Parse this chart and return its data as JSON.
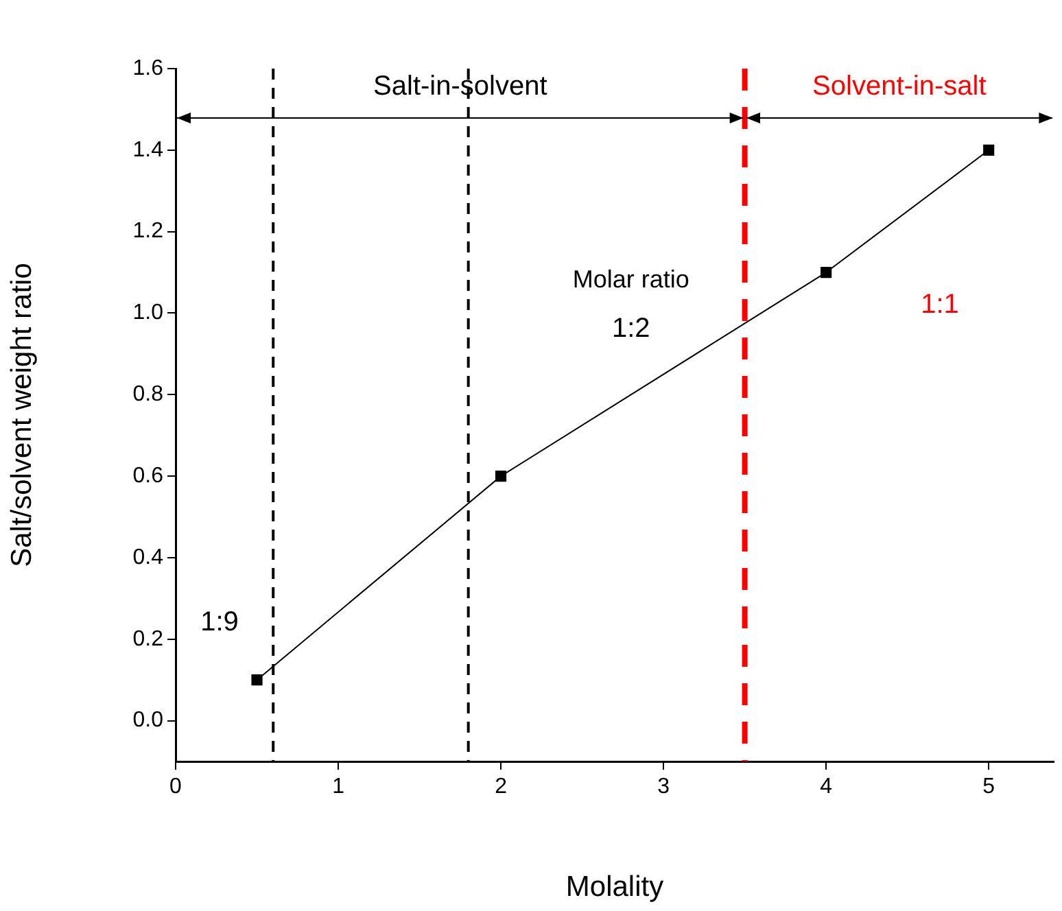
{
  "chart_data": {
    "type": "line",
    "xlabel": "Molality",
    "ylabel": "Salt/solvent weight ratio",
    "x": [
      0.5,
      2,
      4,
      5
    ],
    "series": [
      {
        "color": "#000000",
        "values": [
          0.1,
          0.6,
          1.1,
          1.4
        ]
      }
    ],
    "xlim": [
      0,
      5.4
    ],
    "ylim": [
      -0.1,
      1.6
    ],
    "xticks": [
      0,
      1,
      2,
      3,
      4,
      5
    ],
    "yticks": [
      {
        "value": 0,
        "label": "0.0"
      },
      0.2,
      0.4,
      0.6,
      0.8,
      {
        "value": 1,
        "label": "1.0"
      },
      1.2,
      1.4,
      1.6
    ],
    "ref_lines": [
      {
        "axis": "x",
        "value": 0.6,
        "color": "#000000",
        "line_style": "dashed"
      },
      {
        "axis": "x",
        "value": 1.8,
        "color": "#000000",
        "line_style": "dashed"
      },
      {
        "axis": "x",
        "value": 3.5,
        "color": "#ff0000",
        "line_style": "dashed"
      }
    ],
    "annotations": [
      "1:9",
      "Molar ratio",
      "1:2",
      "1:1",
      "Salt-in-solvent",
      "Solvent-in-salt"
    ],
    "grid": false,
    "legend": false,
    "marker": "square",
    "line_style": "solid"
  }
}
